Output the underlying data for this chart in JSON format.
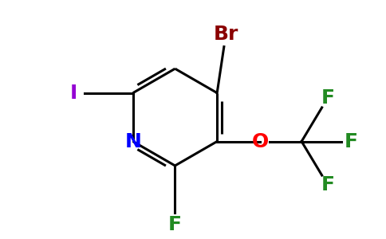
{
  "ring_color": "#000000",
  "bond_width": 2.2,
  "background": "#ffffff",
  "atoms": {
    "N": {
      "label": "N",
      "color": "#0000ff",
      "fontsize": 18
    },
    "Br": {
      "label": "Br",
      "color": "#8b0000",
      "fontsize": 18
    },
    "I": {
      "label": "I",
      "color": "#9400d3",
      "fontsize": 18
    },
    "F1": {
      "label": "F",
      "color": "#228b22",
      "fontsize": 18
    },
    "O": {
      "label": "O",
      "color": "#ff0000",
      "fontsize": 18
    },
    "F2": {
      "label": "F",
      "color": "#228b22",
      "fontsize": 18
    },
    "F3": {
      "label": "F",
      "color": "#228b22",
      "fontsize": 18
    },
    "F4": {
      "label": "F",
      "color": "#228b22",
      "fontsize": 18
    }
  },
  "figsize": [
    4.84,
    3.0
  ],
  "dpi": 100
}
